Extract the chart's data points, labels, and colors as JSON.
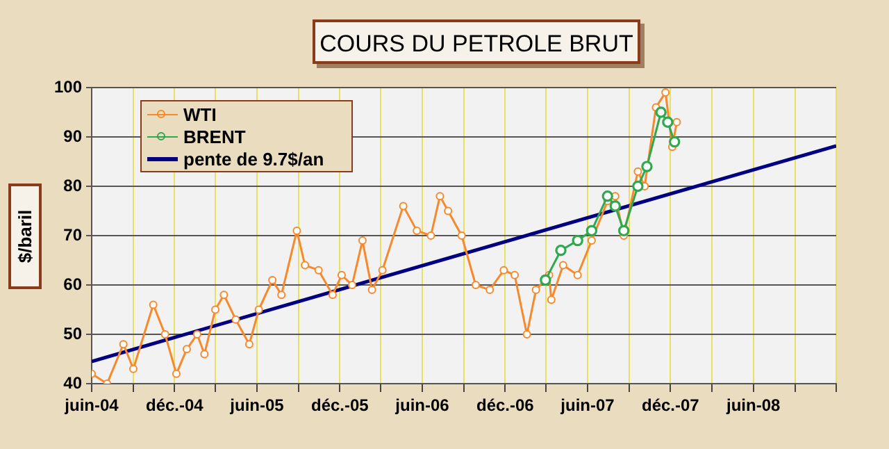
{
  "chart_data": {
    "type": "line",
    "title": "COURS DU PETROLE BRUT",
    "ylabel": "$/baril",
    "xlim": [
      "2004-06-01",
      "2008-12-01"
    ],
    "xticks": [
      {
        "value": "2004-06-01",
        "label": "juin-04"
      },
      {
        "value": "2004-09-01",
        "label": null
      },
      {
        "value": "2004-12-01",
        "label": "déc.-04"
      },
      {
        "value": "2005-03-01",
        "label": null
      },
      {
        "value": "2005-06-01",
        "label": "juin-05"
      },
      {
        "value": "2005-09-01",
        "label": null
      },
      {
        "value": "2005-12-01",
        "label": "déc.-05"
      },
      {
        "value": "2006-03-01",
        "label": null
      },
      {
        "value": "2006-06-01",
        "label": "juin-06"
      },
      {
        "value": "2006-09-01",
        "label": null
      },
      {
        "value": "2006-12-01",
        "label": "déc.-06"
      },
      {
        "value": "2007-03-01",
        "label": null
      },
      {
        "value": "2007-06-01",
        "label": "juin-07"
      },
      {
        "value": "2007-09-01",
        "label": null
      },
      {
        "value": "2007-12-01",
        "label": "déc.-07"
      },
      {
        "value": "2008-03-01",
        "label": null
      },
      {
        "value": "2008-06-01",
        "label": "juin-08"
      },
      {
        "value": "2008-09-01",
        "label": null
      },
      {
        "value": "2008-12-01",
        "label": null
      }
    ],
    "ylim": [
      40,
      100
    ],
    "yticks": [
      40,
      50,
      60,
      70,
      80,
      90,
      100
    ],
    "grid": true,
    "legend": "top left",
    "series": [
      {
        "name": "WTI",
        "color": "#f7892b",
        "marker": "circle",
        "x": [
          "2004-06-01",
          "2004-07-05",
          "2004-08-10",
          "2004-09-01",
          "2004-10-15",
          "2004-11-10",
          "2004-12-05",
          "2004-12-28",
          "2005-01-20",
          "2005-02-05",
          "2005-03-01",
          "2005-03-20",
          "2005-04-15",
          "2005-05-15",
          "2005-06-05",
          "2005-07-05",
          "2005-07-25",
          "2005-08-28",
          "2005-09-15",
          "2005-10-15",
          "2005-11-15",
          "2005-12-05",
          "2005-12-28",
          "2006-01-20",
          "2006-02-10",
          "2006-03-05",
          "2006-04-20",
          "2006-05-20",
          "2006-06-20",
          "2006-07-10",
          "2006-07-28",
          "2006-08-27",
          "2006-09-27",
          "2006-10-28",
          "2006-11-28",
          "2006-12-22",
          "2007-01-18",
          "2007-02-07",
          "2007-03-08",
          "2007-03-13",
          "2007-04-08",
          "2007-05-10",
          "2007-06-10",
          "2007-07-15",
          "2007-08-01",
          "2007-08-20",
          "2007-09-20",
          "2007-10-05",
          "2007-10-30",
          "2007-11-20",
          "2007-12-05",
          "2007-12-15"
        ],
        "values": [
          42,
          40,
          48,
          43,
          56,
          50,
          42,
          47,
          50,
          46,
          55,
          58,
          53,
          48,
          55,
          61,
          58,
          71,
          64,
          63,
          58,
          62,
          60,
          69,
          59,
          63,
          76,
          71,
          70,
          78,
          75,
          70,
          60,
          59,
          63,
          62,
          50,
          59,
          62,
          57,
          64,
          62,
          69,
          77,
          78,
          70,
          83,
          80,
          96,
          99,
          88,
          93
        ]
      },
      {
        "name": "BRENT",
        "color": "#2fa84f",
        "marker": "circle",
        "x": [
          "2007-02-28",
          "2007-04-03",
          "2007-05-10",
          "2007-06-10",
          "2007-07-15",
          "2007-08-01",
          "2007-08-20",
          "2007-09-20",
          "2007-10-10",
          "2007-11-10",
          "2007-11-25",
          "2007-12-10"
        ],
        "values": [
          61,
          67,
          69,
          71,
          78,
          76,
          71,
          80,
          84,
          95,
          93,
          89
        ]
      },
      {
        "name": "pente de 9.7$/an",
        "type": "line",
        "color": "#000080",
        "marker": "none",
        "x": [
          "2004-06-01",
          "2008-12-01"
        ],
        "values": [
          44.5,
          88.2
        ]
      }
    ]
  }
}
